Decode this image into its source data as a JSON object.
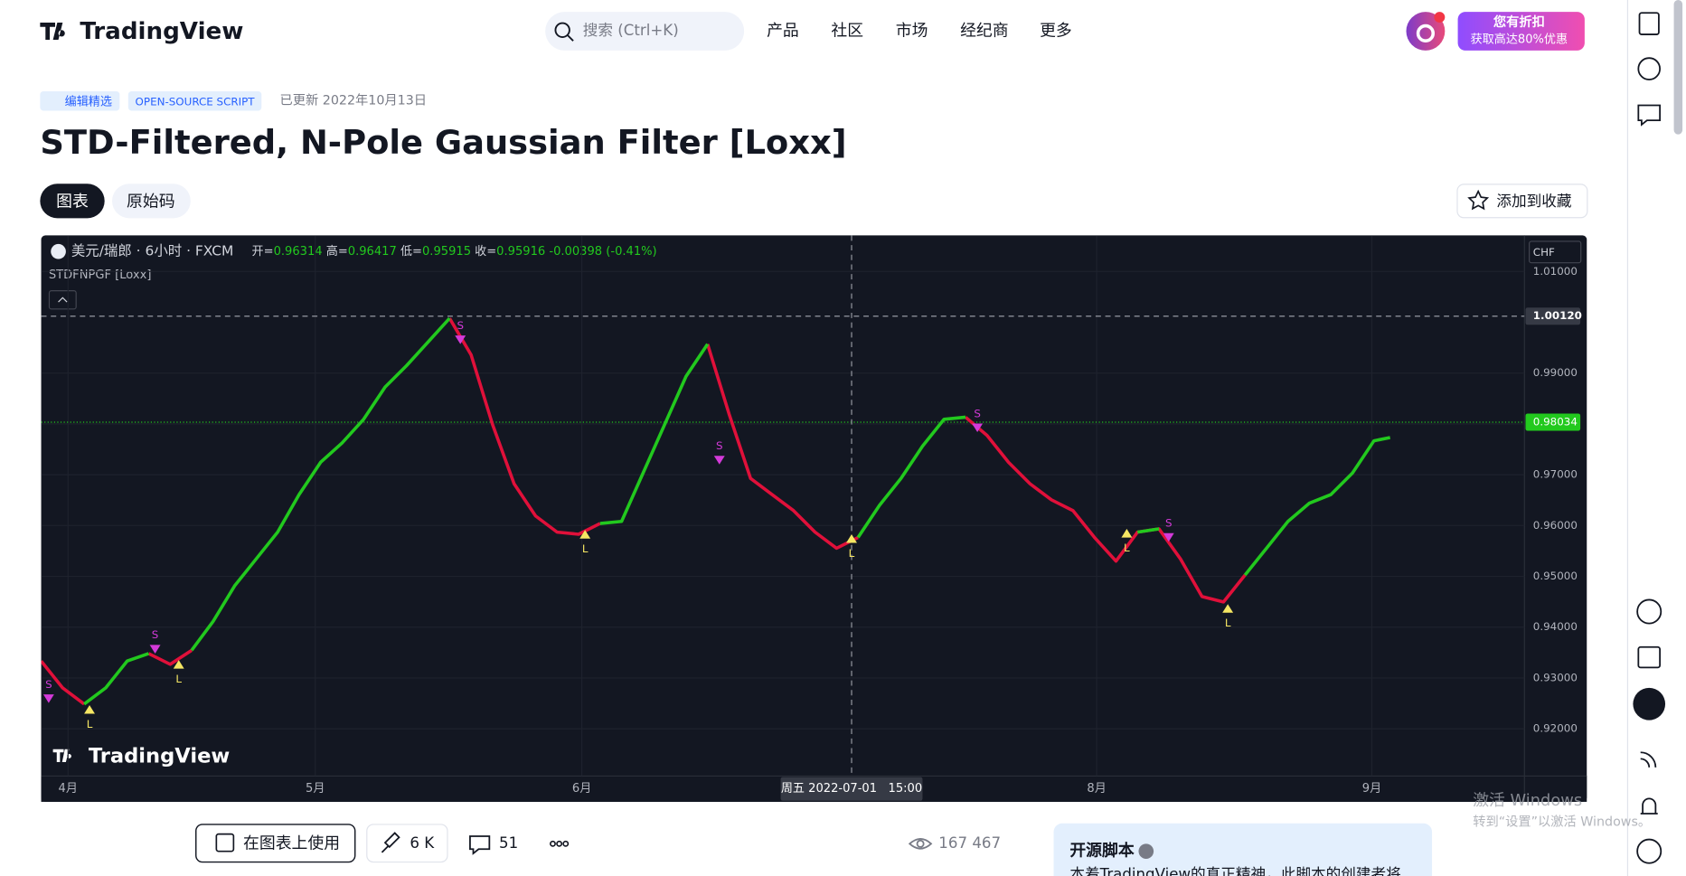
{
  "header": {
    "logo": "TradingView",
    "search": "搜索 (Ctrl+K)",
    "nav": [
      "产品",
      "社区",
      "市场",
      "经纪商",
      "更多"
    ],
    "promo": [
      "您有折扣",
      "获取高达80%优惠"
    ]
  },
  "script": {
    "badges": [
      "编辑精选",
      "OPEN-SOURCE SCRIPT"
    ],
    "updated": "已更新 2022年10月13日",
    "title": "STD-Filtered, N-Pole Gaussian Filter [Loxx]",
    "tabs": [
      "图表",
      "原始码"
    ],
    "favorite": "添加到收藏"
  },
  "chart_data": {
    "type": "line",
    "symbol": "美元/瑞郎 · 6小时 · FXCM",
    "indicator": "STDFNPGF [Loxx]",
    "currency": "CHF",
    "ohlc": [
      {
        "label": "开=",
        "value": "0.96314"
      },
      {
        "label": "高=",
        "value": "0.96417"
      },
      {
        "label": "低=",
        "value": "0.95915"
      },
      {
        "label": "收=",
        "value": "0.95916"
      }
    ],
    "change": "-0.00398 (-0.41%)",
    "watermark": "TradingView",
    "xlim": [
      0,
      69
    ],
    "xticks": [
      {
        "value": 1.25,
        "label": "4月"
      },
      {
        "value": 12.75,
        "label": "5月"
      },
      {
        "value": 25.15,
        "label": "6月"
      },
      {
        "value": 49.1,
        "label": "8月"
      },
      {
        "value": 61.9,
        "label": "9月"
      }
    ],
    "ylim": [
      0.9107,
      1.0171
    ],
    "yticks": [
      {
        "value": 0.92,
        "label": "0.92000"
      },
      {
        "value": 0.93,
        "label": "0.93000"
      },
      {
        "value": 0.94,
        "label": "0.94000"
      },
      {
        "value": 0.95,
        "label": "0.95000"
      },
      {
        "value": 0.96,
        "label": "0.96000"
      },
      {
        "value": 0.97,
        "label": "0.97000"
      },
      {
        "value": 0.98,
        "label": "0.98000"
      },
      {
        "value": 0.99,
        "label": "0.99000"
      },
      {
        "value": 1.01,
        "label": "1.01000"
      }
    ],
    "grid": true,
    "crosshair": {
      "x": 37.7,
      "x_label": "周五 2022-07-01   15:00",
      "y": {
        "value": 1.0012,
        "label": "1.00120"
      }
    },
    "last_price": {
      "value": 0.98034,
      "label": "0.98034",
      "color": "#22c91e"
    },
    "x": [
      0,
      1,
      2,
      3,
      4,
      5,
      6,
      7,
      8,
      9,
      10,
      11,
      12,
      13,
      14,
      15,
      16,
      17,
      18,
      19,
      20,
      21,
      22,
      23,
      24,
      25,
      26,
      27,
      28,
      29,
      30,
      31,
      32,
      33,
      34,
      35,
      36,
      37,
      38,
      39,
      40,
      41,
      42,
      43,
      44,
      45,
      46,
      47,
      48,
      49,
      50,
      51,
      52,
      53,
      54,
      55,
      56,
      57,
      58,
      59,
      60,
      61,
      62,
      62.75
    ],
    "series": [
      {
        "color": "#e0103a",
        "values": [
          0.93333,
          0.92804,
          0.92487,
          null,
          null,
          0.93481,
          0.93269,
          0.93544,
          null,
          null,
          null,
          null,
          null,
          null,
          null,
          null,
          null,
          null,
          null,
          1.00078,
          0.99359,
          0.97985,
          0.96822,
          0.96188,
          0.9587,
          0.95828,
          0.9604,
          null,
          null,
          null,
          null,
          0.99571,
          0.98196,
          0.96928,
          0.9661,
          0.96293,
          0.9587,
          0.95553,
          0.95765,
          null,
          null,
          null,
          null,
          0.98133,
          0.97774,
          0.97245,
          0.96822,
          0.96505,
          0.96293,
          0.95765,
          0.95299,
          0.9587,
          0.95934,
          0.95342,
          0.94602,
          0.94496,
          0.95025,
          null,
          null,
          null,
          null,
          null,
          null,
          null
        ]
      },
      {
        "color": "#22c91e",
        "values": [
          null,
          null,
          0.92487,
          0.92804,
          0.93333,
          0.93481,
          null,
          0.93544,
          0.94115,
          0.94813,
          0.95342,
          0.9587,
          0.9661,
          0.97245,
          0.97626,
          0.98091,
          0.98725,
          0.99148,
          0.99613,
          1.00078,
          null,
          null,
          null,
          null,
          null,
          null,
          0.9604,
          0.96082,
          0.97033,
          0.97985,
          0.98937,
          0.99571,
          null,
          null,
          null,
          null,
          null,
          null,
          0.95765,
          0.96399,
          0.96928,
          0.97562,
          0.98091,
          0.98133,
          null,
          null,
          null,
          null,
          null,
          null,
          null,
          0.9587,
          0.95934,
          null,
          null,
          null,
          0.95025,
          0.95553,
          0.96082,
          0.96441,
          0.9661,
          0.97033,
          0.97668,
          0.97731
        ]
      }
    ],
    "signals": [
      {
        "label": "S",
        "x": 0.35,
        "value": 0.92593,
        "color": "#d43ad9"
      },
      {
        "label": "L",
        "x": 2.25,
        "value": 0.92381,
        "color": "#f5e663"
      },
      {
        "label": "S",
        "x": 5.3,
        "value": 0.93565,
        "color": "#d43ad9"
      },
      {
        "label": "L",
        "x": 6.4,
        "value": 0.93269,
        "color": "#f5e663"
      },
      {
        "label": "S",
        "x": 19.5,
        "value": 0.99656,
        "color": "#d43ad9"
      },
      {
        "label": "L",
        "x": 25.3,
        "value": 0.95828,
        "color": "#f5e663"
      },
      {
        "label": "S",
        "x": 31.55,
        "value": 0.97287,
        "color": "#d43ad9"
      },
      {
        "label": "L",
        "x": 37.7,
        "value": 0.95744,
        "color": "#f5e663"
      },
      {
        "label": "S",
        "x": 43.55,
        "value": 0.97922,
        "color": "#d43ad9"
      },
      {
        "label": "L",
        "x": 50.5,
        "value": 0.95849,
        "color": "#f5e663"
      },
      {
        "label": "S",
        "x": 52.45,
        "value": 0.95765,
        "color": "#d43ad9"
      },
      {
        "label": "L",
        "x": 55.2,
        "value": 0.94369,
        "color": "#f5e663"
      }
    ]
  },
  "actions": {
    "use": "在图表上使用",
    "boosts": "6 K",
    "comments": "51",
    "views": "167 467"
  },
  "open_source": {
    "title": "开源脚本",
    "text": "本着TradingView的真正精神，此脚本的创建者将"
  },
  "os_notice": [
    "激活 Windows",
    "转到“设置”以激活 Windows。"
  ]
}
